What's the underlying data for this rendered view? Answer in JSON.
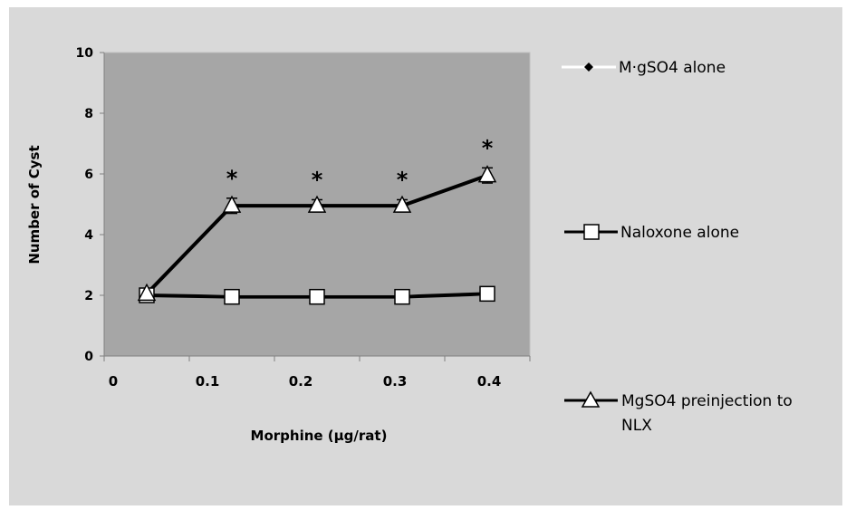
{
  "chart_data": {
    "type": "line",
    "categories": [
      "0",
      "0.1",
      "0.2",
      "0.3",
      "0.4"
    ],
    "xlabel": "Morphine (µg/rat)",
    "ylabel": "Number of Cyst",
    "ylim": [
      0,
      10
    ],
    "yticks": [
      "0",
      "2",
      "4",
      "6",
      "8",
      "10"
    ],
    "grid": false,
    "plot_background": "#a6a6a6",
    "figure_background": "#d9d9d9",
    "legend_position": "right",
    "series": [
      {
        "name": "MgSO4 alone",
        "legend_label": "M·gSO4 alone",
        "values": [
          2,
          2,
          2,
          2,
          2
        ],
        "marker": "diamond",
        "line_color": "#ffffff",
        "marker_color": "#000000"
      },
      {
        "name": "Naloxone alone",
        "values": [
          2,
          1.95,
          1.95,
          1.95,
          2.05
        ],
        "error": [
          0,
          0.08,
          0.08,
          0.08,
          0.08
        ],
        "marker": "square",
        "line_color": "#000000",
        "marker_fill": "#ffffff"
      },
      {
        "name": "MgSO4 preinjection to NLX",
        "legend_lines": [
          "MgSO4 preinjection to",
          "NLX"
        ],
        "values": [
          2.05,
          4.95,
          4.95,
          4.95,
          5.95
        ],
        "error": [
          0,
          0.25,
          0.2,
          0.2,
          0.25
        ],
        "marker": "triangle",
        "line_color": "#000000",
        "marker_fill": "#ffffff"
      }
    ],
    "annotations": [
      "*",
      "*",
      "*",
      "*"
    ],
    "annotation_categories": [
      "0.1",
      "0.2",
      "0.3",
      "0.4"
    ]
  }
}
